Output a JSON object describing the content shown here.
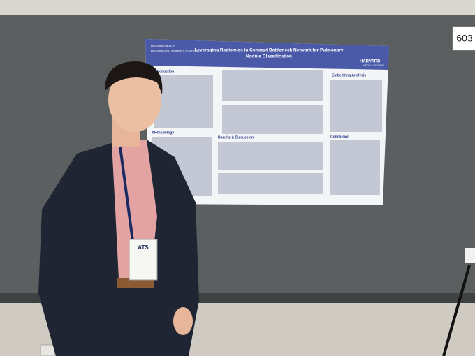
{
  "board_number": "603",
  "poster": {
    "title_lines": [
      "Leveraging Radiomics in Concept Bottleneck Network for Pulmonary",
      "Nodule Classification"
    ],
    "logos": [
      "BRIGHAM HEALTH",
      "BRIGHAM AND WOMEN'S HOSPITAL",
      "HARVARD",
      "MEDICAL SCHOOL"
    ],
    "sections": [
      "Introduction",
      "Methodology",
      "Results & Discussion",
      "Embedding Analysis",
      "Conclusion"
    ]
  },
  "badge": {
    "org": "ATS"
  }
}
